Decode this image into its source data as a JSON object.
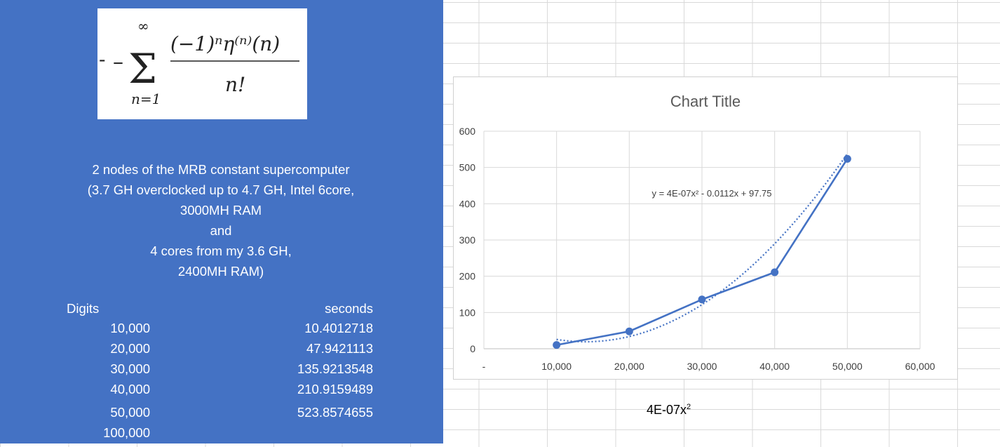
{
  "formula": {
    "sum_upper": "∞",
    "sum_lower": "n=1",
    "numerator": "(−1)ⁿη⁽ⁿ⁾(n)",
    "denominator": "n!"
  },
  "description": [
    "2 nodes of the MRB constant supercomputer",
    "(3.7 GH overclocked up to 4.7 GH, Intel 6core,",
    "3000MH RAM",
    "and",
    "4 cores from my 3.6 GH,",
    "2400MH RAM)"
  ],
  "table": {
    "headers": {
      "digits": "Digits",
      "seconds": "seconds"
    },
    "rows": [
      {
        "digits": "10,000",
        "seconds": "10.4012718"
      },
      {
        "digits": "20,000",
        "seconds": "47.9421113"
      },
      {
        "digits": "30,000",
        "seconds": "135.9213548"
      },
      {
        "digits": "40,000",
        "seconds": "210.9159489"
      },
      {
        "digits": "50,000",
        "seconds": "523.8574655"
      },
      {
        "digits": "100,000",
        "seconds": ""
      }
    ]
  },
  "trend_label_cell": {
    "text": "4E-07x",
    "sup": "2"
  },
  "colors": {
    "panel": "#4472c4",
    "series": "#4472c4",
    "gridline": "#d9d9d9"
  },
  "chart_data": {
    "type": "scatter",
    "title": "Chart Title",
    "x": [
      10000,
      20000,
      30000,
      40000,
      50000
    ],
    "series": [
      {
        "values": [
          10.4012718,
          47.9421113,
          135.9213548,
          210.9159489,
          523.8574655
        ]
      }
    ],
    "trendline": {
      "type": "polynomial-2",
      "label": "y = 4E-07x² - 0.0112x + 97.75",
      "coefficients": [
        4e-07,
        -0.0112,
        97.75
      ]
    },
    "xlim": [
      0,
      60000
    ],
    "ylim": [
      0,
      600
    ],
    "x_ticks": [
      "-",
      "10,000",
      "20,000",
      "30,000",
      "40,000",
      "50,000",
      "60,000"
    ],
    "y_ticks": [
      "0",
      "100",
      "200",
      "300",
      "400",
      "500",
      "600"
    ],
    "grid": true,
    "legend": "none"
  }
}
